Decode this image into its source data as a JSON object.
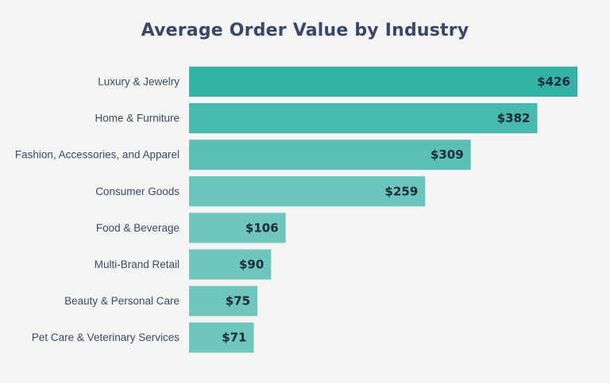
{
  "chart_data": {
    "type": "bar",
    "orientation": "horizontal",
    "title": "Average Order Value by Industry",
    "xlabel": "",
    "ylabel": "",
    "value_prefix": "$",
    "xlim": [
      0,
      426
    ],
    "categories": [
      "Luxury & Jewelry",
      "Home & Furniture",
      "Fashion, Accessories, and Apparel",
      "Consumer Goods",
      "Food & Beverage",
      "Multi-Brand Retail",
      "Beauty & Personal Care",
      "Pet Care & Veterinary Services"
    ],
    "values": [
      426,
      382,
      309,
      259,
      106,
      90,
      75,
      71
    ],
    "value_labels": [
      "$426",
      "$382",
      "$309",
      "$259",
      "$106",
      "$90",
      "$75",
      "$71"
    ],
    "colors": [
      "#33b3a6",
      "#47b9ae",
      "#5bbfb5",
      "#6cc5bc",
      "#6ec6bd",
      "#6ec6bd",
      "#6ec6bd",
      "#6ec6bd"
    ],
    "grid": false,
    "legend": "none"
  },
  "colors": {
    "background": "#f4f4f4",
    "title": "#3b4768",
    "category_text": "#3f4a62",
    "value_text": "#1e2a38"
  }
}
